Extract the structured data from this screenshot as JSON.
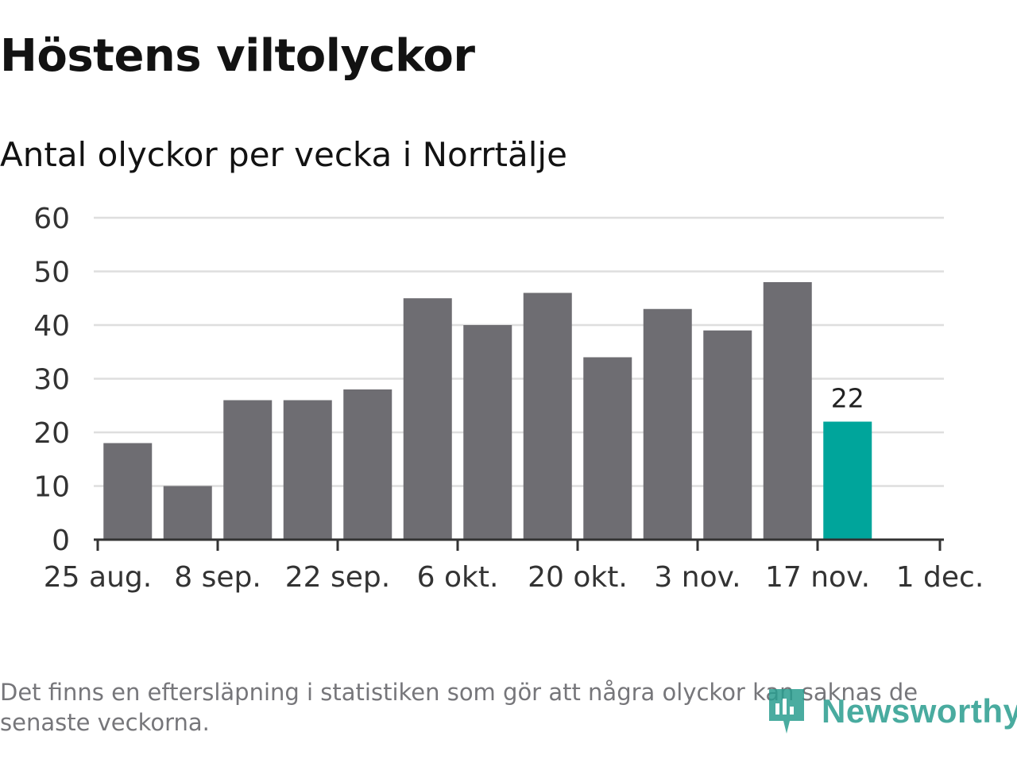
{
  "title": "Höstens viltolyckor",
  "subtitle": "Antal olyckor per vecka i Norrtälje",
  "footnote": "Det finns en eftersläpning i statistiken som gör att några olyckor kan saknas de senaste veckorna.",
  "brand": {
    "name": "Newsworthy",
    "color": "#2a9d8f"
  },
  "colors": {
    "bar": "#6e6d72",
    "highlight": "#00a59b",
    "grid": "#dedede",
    "axis": "#333333",
    "text": "#333333"
  },
  "chart_data": {
    "type": "bar",
    "x_tick_labels": [
      "25 aug.",
      "8 sep.",
      "22 sep.",
      "6 okt.",
      "20 okt.",
      "3 nov.",
      "17 nov.",
      "1 dec."
    ],
    "y_ticks": [
      0,
      10,
      20,
      30,
      40,
      50,
      60
    ],
    "ylim": [
      0,
      60
    ],
    "values": [
      18,
      10,
      26,
      26,
      28,
      45,
      40,
      46,
      34,
      43,
      39,
      48,
      22
    ],
    "highlight_index": 12,
    "data_labels": [
      {
        "index": 12,
        "text": "22"
      }
    ],
    "grid": true
  }
}
